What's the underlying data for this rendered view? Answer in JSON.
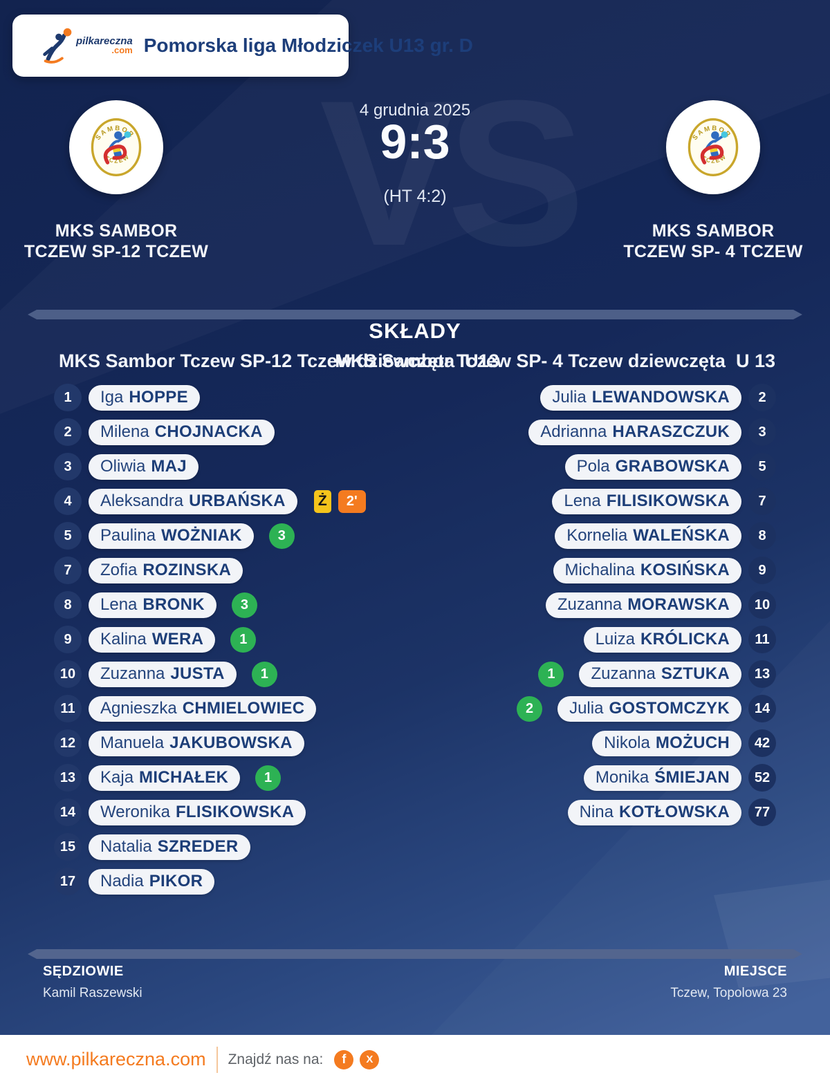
{
  "header": {
    "logo_text": "pilkareczna",
    "logo_tld": ".com",
    "league": "Pomorska liga Młodziczek U13 gr. D"
  },
  "match": {
    "date": "4 grudnia 2025",
    "score": "9:3",
    "halftime": "(HT 4:2)",
    "vs_watermark": "VS"
  },
  "teams": {
    "home": {
      "name_line1": "MKS SAMBOR",
      "name_line2": "TCZEW SP-12 TCZEW"
    },
    "away": {
      "name_line1": "MKS SAMBOR",
      "name_line2": "TCZEW SP- 4 TCZEW"
    }
  },
  "lineups": {
    "title": "SKŁADY",
    "home_header": "MKS Sambor Tczew SP-12 Tczew dziewczęta  U13",
    "away_header": "MKS Sambor Tczew SP- 4 Tczew dziewczęta  U 13",
    "home_players": [
      {
        "number": "1",
        "first": "Iga",
        "last": "HOPPE"
      },
      {
        "number": "2",
        "first": "Milena",
        "last": "CHOJNACKA"
      },
      {
        "number": "3",
        "first": "Oliwia",
        "last": "MAJ"
      },
      {
        "number": "4",
        "first": "Aleksandra",
        "last": "URBAŃSKA",
        "yellow_card": "Ż",
        "penalty_time": "2'"
      },
      {
        "number": "5",
        "first": "Paulina",
        "last": "WOŻNIAK",
        "goals": "3"
      },
      {
        "number": "7",
        "first": "Zofia",
        "last": "ROZINSKA"
      },
      {
        "number": "8",
        "first": "Lena",
        "last": "BRONK",
        "goals": "3"
      },
      {
        "number": "9",
        "first": "Kalina",
        "last": "WERA",
        "goals": "1"
      },
      {
        "number": "10",
        "first": "Zuzanna",
        "last": "JUSTA",
        "goals": "1"
      },
      {
        "number": "11",
        "first": "Agnieszka",
        "last": "CHMIELOWIEC"
      },
      {
        "number": "12",
        "first": "Manuela",
        "last": "JAKUBOWSKA"
      },
      {
        "number": "13",
        "first": "Kaja",
        "last": "MICHAŁEK",
        "goals": "1"
      },
      {
        "number": "14",
        "first": "Weronika",
        "last": "FLISIKOWSKA"
      },
      {
        "number": "15",
        "first": "Natalia",
        "last": "SZREDER"
      },
      {
        "number": "17",
        "first": "Nadia",
        "last": "PIKOR"
      }
    ],
    "away_players": [
      {
        "number": "2",
        "first": "Julia",
        "last": "LEWANDOWSKA"
      },
      {
        "number": "3",
        "first": "Adrianna",
        "last": "HARASZCZUK"
      },
      {
        "number": "5",
        "first": "Pola",
        "last": "GRABOWSKA"
      },
      {
        "number": "7",
        "first": "Lena",
        "last": "FILISIKOWSKA"
      },
      {
        "number": "8",
        "first": "Kornelia",
        "last": "WALEŃSKA"
      },
      {
        "number": "9",
        "first": "Michalina",
        "last": "KOSIŃSKA"
      },
      {
        "number": "10",
        "first": "Zuzanna",
        "last": "MORAWSKA"
      },
      {
        "number": "11",
        "first": "Luiza",
        "last": "KRÓLICKA"
      },
      {
        "number": "13",
        "first": "Zuzanna",
        "last": "SZTUKA",
        "goals": "1"
      },
      {
        "number": "14",
        "first": "Julia",
        "last": "GOSTOMCZYK",
        "goals": "2"
      },
      {
        "number": "42",
        "first": "Nikola",
        "last": "MOŻUCH"
      },
      {
        "number": "52",
        "first": "Monika",
        "last": "ŚMIEJAN"
      },
      {
        "number": "77",
        "first": "Nina",
        "last": "KOTŁOWSKA"
      }
    ]
  },
  "officials": {
    "referees_label": "SĘDZIOWIE",
    "referee_name": "Kamil Raszewski",
    "venue_label": "MIEJSCE",
    "venue_name": "Tczew, Topolowa 23"
  },
  "footer": {
    "website": "www.pilkareczna.com",
    "find_us_label": "Znajdź nas na:",
    "facebook_glyph": "f",
    "x_glyph": "X"
  },
  "colors": {
    "accent_orange": "#f47b20",
    "goal_green": "#2db254",
    "card_yellow": "#f5c41b",
    "navy_bg": "#16295a",
    "pill_text": "#1d3e78"
  }
}
